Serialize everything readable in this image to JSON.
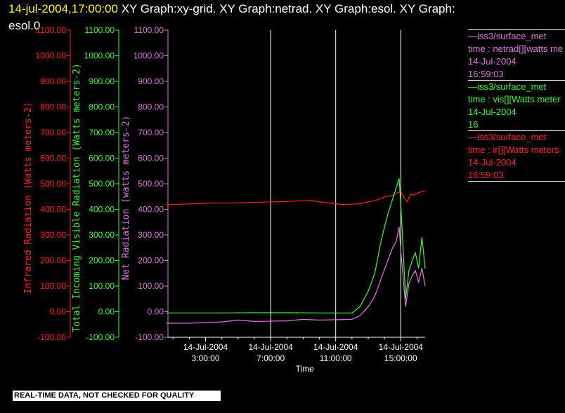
{
  "header": {
    "timestamp": "14-jul-2004,17:00:00",
    "title_line1": "  XY Graph:xy-grid.  XY Graph:netrad.  XY Graph:esol.  XY Graph:",
    "title_line2": "esol.0"
  },
  "legend": [
    {
      "source": "—iss3/surface_met",
      "field": "time : netrad[][watts me",
      "date": "14-Jul-2004",
      "time": "16:59:03",
      "color": "#dd77dd"
    },
    {
      "source": "—iss3/surface_met",
      "field": "time : vis[][Watts meter",
      "date": "14-Jul-2004",
      "time": "16",
      "color": "#33ff33"
    },
    {
      "source": "—iss3/surface_met",
      "field": "time : ir[][Watts meters",
      "date": "14-Jul-2004",
      "time": "16:59:03",
      "color": "#ff2222"
    }
  ],
  "footer": {
    "text": "REAL-TIME DATA, NOT CHECKED FOR QUALITY"
  },
  "chart_data": {
    "type": "line",
    "title": "",
    "xlabel": "Time",
    "xlim": [
      0.6,
      16.5
    ],
    "x_ticks": [
      {
        "x": 3,
        "date": "14-Jul-2004",
        "time": "3:00:00"
      },
      {
        "x": 7,
        "date": "14-Jul-2004",
        "time": "7:00:00"
      },
      {
        "x": 11,
        "date": "14-Jul-2004",
        "time": "11:00:00"
      },
      {
        "x": 15,
        "date": "14-Jul-2004",
        "time": "15:00:00"
      }
    ],
    "vertical_gridlines_at": [
      7,
      11,
      15
    ],
    "axes": [
      {
        "id": "ir",
        "label": "Infrared Radiation (Watts meters-2)",
        "color": "#ff2222",
        "ylim": [
          -100,
          1100
        ],
        "ticks": [
          "-100.00",
          "0.00",
          "100.00",
          "200.00",
          "300.00",
          "400.00",
          "500.00",
          "600.00",
          "700.00",
          "800.00",
          "900.00",
          "1000.00",
          "1100.00"
        ]
      },
      {
        "id": "vis",
        "label": "Total Incoming Visible Radiation (Watts meters-2)",
        "color": "#33ff33",
        "ylim": [
          -100,
          1100
        ],
        "ticks": [
          "-100.00",
          "0.00",
          "100.00",
          "200.00",
          "300.00",
          "400.00",
          "500.00",
          "600.00",
          "700.00",
          "800.00",
          "900.00",
          "1000.00",
          "1100.00"
        ]
      },
      {
        "id": "netrad",
        "label": "Net Radiation (watts meters-2)",
        "color": "#dd77dd",
        "ylim": [
          -100,
          1100
        ],
        "ticks": [
          "-100.00",
          "0.00",
          "100.00",
          "200.00",
          "300.00",
          "400.00",
          "500.00",
          "600.00",
          "700.00",
          "800.00",
          "900.00",
          "1000.00",
          "1100.00"
        ]
      }
    ],
    "series": [
      {
        "name": "time : ir[][Watts meters",
        "axis": "ir",
        "color": "#ff2222",
        "x": [
          0.6,
          1.5,
          2.5,
          3.5,
          4.5,
          5.5,
          6.5,
          7.5,
          8.5,
          9.5,
          10.5,
          11.5,
          12.5,
          13.5,
          14.0,
          14.5,
          14.8,
          15.0,
          15.2,
          15.4,
          15.6,
          15.8,
          16.0,
          16.2,
          16.5
        ],
        "y": [
          418,
          420,
          422,
          425,
          424,
          426,
          428,
          430,
          432,
          434,
          425,
          418,
          422,
          436,
          448,
          455,
          465,
          470,
          445,
          430,
          460,
          455,
          462,
          468,
          472
        ]
      },
      {
        "name": "time : vis[][Watts meter",
        "axis": "vis",
        "color": "#33ff33",
        "x": [
          0.6,
          2,
          4,
          6,
          8,
          10,
          12,
          12.5,
          13,
          13.4,
          13.8,
          14.2,
          14.5,
          14.7,
          14.9,
          15.0,
          15.15,
          15.3,
          15.5,
          15.7,
          15.9,
          16.1,
          16.3,
          16.5
        ],
        "y": [
          -5,
          -5,
          -5,
          -4,
          -4,
          -5,
          -5,
          20,
          80,
          150,
          280,
          380,
          440,
          480,
          520,
          420,
          240,
          50,
          160,
          200,
          230,
          170,
          290,
          170
        ]
      },
      {
        "name": "time : netrad[][watts me",
        "axis": "netrad",
        "color": "#dd77dd",
        "x": [
          0.6,
          2,
          4,
          5,
          6,
          8,
          9,
          10,
          12,
          12.5,
          13,
          13.4,
          13.8,
          14.2,
          14.5,
          14.7,
          14.9,
          15.0,
          15.15,
          15.3,
          15.5,
          15.7,
          15.9,
          16.1,
          16.3,
          16.5
        ],
        "y": [
          -45,
          -45,
          -40,
          -33,
          -38,
          -36,
          -30,
          -33,
          -30,
          -15,
          20,
          60,
          130,
          200,
          250,
          270,
          330,
          240,
          130,
          20,
          110,
          140,
          160,
          115,
          170,
          100
        ]
      }
    ]
  }
}
